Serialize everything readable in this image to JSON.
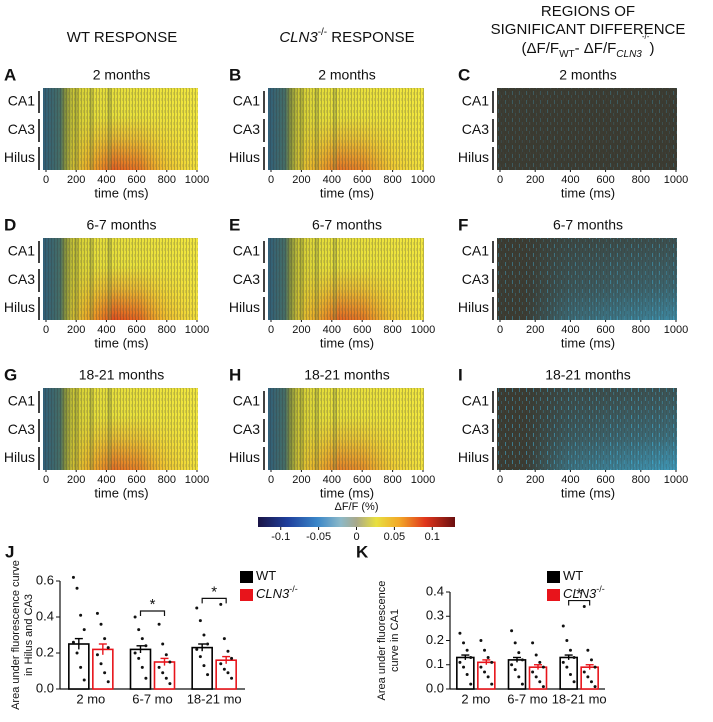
{
  "headers": {
    "wt": "WT RESPONSE",
    "ko": {
      "gene": "CLN3",
      "superscript": "-/-",
      "rest": " RESPONSE"
    },
    "diff": {
      "line1": "REGIONS OF",
      "line2": "SIGNIFICANT DIFFERENCE",
      "formula": {
        "open": "(ΔF/F",
        "sub1": "WT",
        "mid": "- ΔF/F",
        "sub2": "CLN3",
        "sup2": "-/-",
        "close": ")"
      }
    }
  },
  "panels": [
    {
      "letter": "A",
      "title": "2 months"
    },
    {
      "letter": "B",
      "title": "2 months"
    },
    {
      "letter": "C",
      "title": "2 months"
    },
    {
      "letter": "D",
      "title": "6-7 months"
    },
    {
      "letter": "E",
      "title": "6-7 months"
    },
    {
      "letter": "F",
      "title": "6-7 months"
    },
    {
      "letter": "G",
      "title": "18-21 months"
    },
    {
      "letter": "H",
      "title": "18-21 months"
    },
    {
      "letter": "I",
      "title": "18-21 months"
    }
  ],
  "regions": [
    "CA1",
    "CA3",
    "Hilus"
  ],
  "heatmap_xlim": [
    0,
    1000
  ],
  "heatmap_xticks": [
    0,
    200,
    400,
    600,
    800,
    1000
  ],
  "heatmap_xlabel": "time (ms)",
  "colorbar": {
    "label": "ΔF/F (%)",
    "lim": [
      -0.13,
      0.13
    ],
    "ticks": [
      -0.1,
      -0.05,
      0,
      0.05,
      0.1
    ]
  },
  "chart_data": [
    {
      "type": "bar",
      "panel_label": "J",
      "ylabel": [
        "Area under fluorescence curve",
        "in Hilus and CA3"
      ],
      "categories": [
        "2 mo",
        "6-7 mo",
        "18-21 mo"
      ],
      "series": [
        {
          "name": "WT",
          "color": "#000000",
          "values": [
            0.25,
            0.22,
            0.23
          ],
          "errors": [
            0.03,
            0.02,
            0.02
          ],
          "points": [
            [
              0.62,
              0.56,
              0.41,
              0.33,
              0.26,
              0.2,
              0.12,
              0.05
            ],
            [
              0.4,
              0.33,
              0.28,
              0.24,
              0.2,
              0.17,
              0.12,
              0.06
            ],
            [
              0.45,
              0.38,
              0.3,
              0.25,
              0.22,
              0.18,
              0.13,
              0.08
            ]
          ]
        },
        {
          "name": "CLN3",
          "name_superscript": "-/-",
          "color": "#e8141b",
          "values": [
            0.22,
            0.15,
            0.16
          ],
          "errors": [
            0.03,
            0.02,
            0.02
          ],
          "points": [
            [
              0.42,
              0.36,
              0.28,
              0.23,
              0.19,
              0.14,
              0.09,
              0.04
            ],
            [
              0.36,
              0.25,
              0.19,
              0.15,
              0.12,
              0.09,
              0.06,
              0.03
            ],
            [
              0.47,
              0.28,
              0.21,
              0.17,
              0.14,
              0.11,
              0.09,
              0.06
            ]
          ]
        }
      ],
      "ylim": [
        0,
        0.6
      ],
      "yticks": [
        {
          "value": 0,
          "label": "0.0"
        },
        0.2,
        0.4,
        0.6
      ],
      "significance": [
        null,
        "*",
        "*"
      ]
    },
    {
      "type": "bar",
      "panel_label": "K",
      "ylabel": [
        "Area under fluorescence",
        "curve in CA1"
      ],
      "categories": [
        "2 mo",
        "6-7 mo",
        "18-21 mo"
      ],
      "series": [
        {
          "name": "WT",
          "color": "#000000",
          "values": [
            0.13,
            0.12,
            0.13
          ],
          "errors": [
            0.01,
            0.01,
            0.01
          ],
          "points": [
            [
              0.23,
              0.19,
              0.16,
              0.13,
              0.11,
              0.09,
              0.06,
              0.02
            ],
            [
              0.24,
              0.19,
              0.15,
              0.12,
              0.1,
              0.08,
              0.05,
              0.02
            ],
            [
              0.26,
              0.2,
              0.16,
              0.13,
              0.11,
              0.09,
              0.06,
              0.03
            ]
          ]
        },
        {
          "name": "CLN3",
          "name_superscript": "-/-",
          "color": "#e8141b",
          "values": [
            0.11,
            0.09,
            0.09
          ],
          "errors": [
            0.01,
            0.01,
            0.01
          ],
          "points": [
            [
              0.2,
              0.16,
              0.13,
              0.11,
              0.09,
              0.07,
              0.05,
              0.02
            ],
            [
              0.19,
              0.14,
              0.11,
              0.09,
              0.07,
              0.05,
              0.03,
              0.01
            ],
            [
              0.34,
              0.16,
              0.12,
              0.09,
              0.07,
              0.05,
              0.03,
              0.01
            ]
          ]
        }
      ],
      "ylim": [
        0,
        0.4
      ],
      "yticks": [
        {
          "value": 0,
          "label": "0.0"
        },
        0.1,
        0.2,
        0.3,
        0.4
      ],
      "significance": [
        null,
        null,
        "*"
      ]
    }
  ]
}
